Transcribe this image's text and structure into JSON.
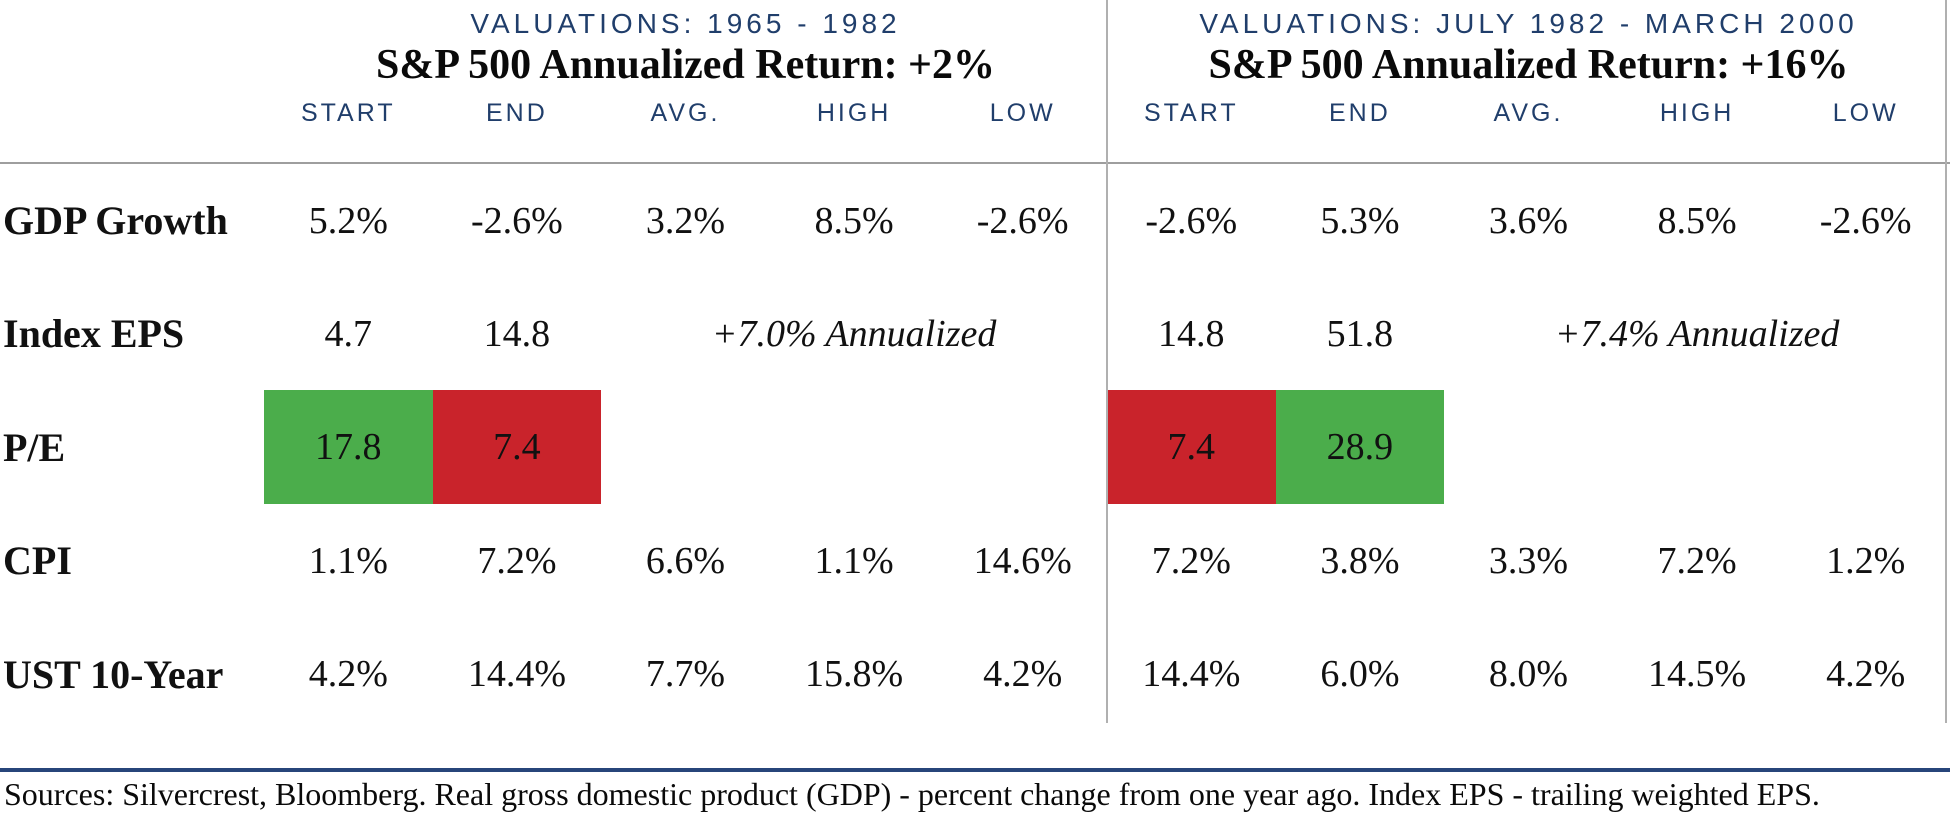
{
  "colors": {
    "navy": "#203e6b",
    "green": "#4bad4b",
    "red": "#c9232b",
    "gray_line": "#9e9e9e",
    "footer_rule": "#27457a"
  },
  "left_panel": {
    "title": "VALUATIONS: 1965 - 1982",
    "subtitle": "S&P 500 Annualized Return: +2%"
  },
  "right_panel": {
    "title": "VALUATIONS: JULY 1982 - MARCH 2000",
    "subtitle": "S&P 500 Annualized Return: +16%"
  },
  "columns": {
    "start": "START",
    "end": "END",
    "avg": "AVG.",
    "high": "HIGH",
    "low": "LOW"
  },
  "rows": {
    "gdp": {
      "label": "GDP Growth",
      "l": [
        "5.2%",
        "-2.6%",
        "3.2%",
        "8.5%",
        "-2.6%"
      ],
      "r": [
        "-2.6%",
        "5.3%",
        "3.6%",
        "8.5%",
        "-2.6%"
      ]
    },
    "eps": {
      "label": "Index EPS",
      "l_start": "4.7",
      "l_end": "14.8",
      "l_annualized": "+7.0% Annualized",
      "r_start": "14.8",
      "r_end": "51.8",
      "r_annualized": "+7.4% Annualized"
    },
    "pe": {
      "label": "P/E",
      "l_start": "17.8",
      "l_end": "7.4",
      "r_start": "7.4",
      "r_end": "28.9"
    },
    "cpi": {
      "label": "CPI",
      "l": [
        "1.1%",
        "7.2%",
        "6.6%",
        "1.1%",
        "14.6%"
      ],
      "r": [
        "7.2%",
        "3.8%",
        "3.3%",
        "7.2%",
        "1.2%"
      ]
    },
    "ust": {
      "label": "UST 10-Year",
      "l": [
        "4.2%",
        "14.4%",
        "7.7%",
        "15.8%",
        "4.2%"
      ],
      "r": [
        "14.4%",
        "6.0%",
        "8.0%",
        "14.5%",
        "4.2%"
      ]
    }
  },
  "footer": "Sources: Silvercrest, Bloomberg. Real gross domestic product (GDP) - percent change from one year ago. Index EPS - trailing weighted EPS.",
  "chart_data": {
    "type": "table",
    "tables": [
      {
        "title": "VALUATIONS: 1965 - 1982",
        "subtitle": "S&P 500 Annualized Return: +2%",
        "columns": [
          "START",
          "END",
          "AVG.",
          "HIGH",
          "LOW"
        ],
        "rows": [
          {
            "label": "GDP Growth",
            "values": [
              "5.2%",
              "-2.6%",
              "3.2%",
              "8.5%",
              "-2.6%"
            ]
          },
          {
            "label": "Index EPS",
            "values": [
              "4.7",
              "14.8",
              "+7.0% Annualized",
              null,
              null
            ]
          },
          {
            "label": "P/E",
            "values": [
              "17.8",
              "7.4",
              null,
              null,
              null
            ],
            "cell_colors": [
              "green",
              "red",
              null,
              null,
              null
            ]
          },
          {
            "label": "CPI",
            "values": [
              "1.1%",
              "7.2%",
              "6.6%",
              "1.1%",
              "14.6%"
            ]
          },
          {
            "label": "UST 10-Year",
            "values": [
              "4.2%",
              "14.4%",
              "7.7%",
              "15.8%",
              "4.2%"
            ]
          }
        ]
      },
      {
        "title": "VALUATIONS: JULY 1982 - MARCH 2000",
        "subtitle": "S&P 500 Annualized Return: +16%",
        "columns": [
          "START",
          "END",
          "AVG.",
          "HIGH",
          "LOW"
        ],
        "rows": [
          {
            "label": "GDP Growth",
            "values": [
              "-2.6%",
              "5.3%",
              "3.6%",
              "8.5%",
              "-2.6%"
            ]
          },
          {
            "label": "Index EPS",
            "values": [
              "14.8",
              "51.8",
              "+7.4% Annualized",
              null,
              null
            ]
          },
          {
            "label": "P/E",
            "values": [
              "7.4",
              "28.9",
              null,
              null,
              null
            ],
            "cell_colors": [
              "red",
              "green",
              null,
              null,
              null
            ]
          },
          {
            "label": "CPI",
            "values": [
              "7.2%",
              "3.8%",
              "3.3%",
              "7.2%",
              "1.2%"
            ]
          },
          {
            "label": "UST 10-Year",
            "values": [
              "14.4%",
              "6.0%",
              "8.0%",
              "14.5%",
              "4.2%"
            ]
          }
        ]
      }
    ]
  }
}
